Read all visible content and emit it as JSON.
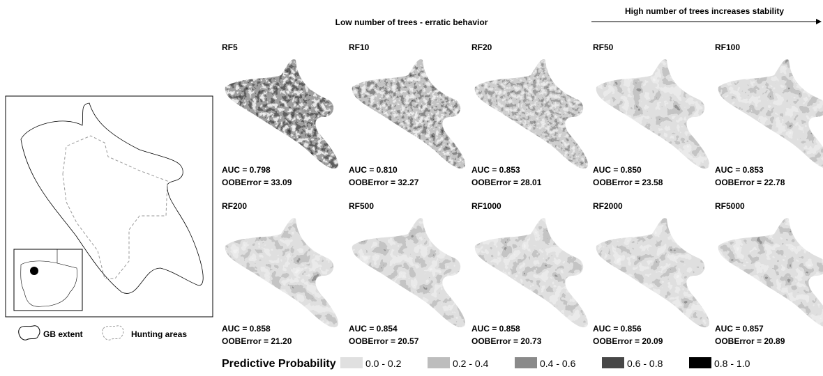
{
  "header": {
    "low_trees": "Low number of trees - erratic behavior",
    "high_trees": "High number of trees increases stability"
  },
  "panels": [
    {
      "label": "RF5",
      "auc": "AUC = 0.798",
      "oob": "OOBError = 33.09"
    },
    {
      "label": "RF10",
      "auc": "AUC = 0.810",
      "oob": "OOBError = 32.27"
    },
    {
      "label": "RF20",
      "auc": "AUC = 0.853",
      "oob": "OOBError = 28.01"
    },
    {
      "label": "RF50",
      "auc": "AUC = 0.850",
      "oob": "OOBError = 23.58"
    },
    {
      "label": "RF100",
      "auc": "AUC = 0.853",
      "oob": "OOBError = 22.78"
    },
    {
      "label": "RF200",
      "auc": "AUC = 0.858",
      "oob": "OOBError = 21.20"
    },
    {
      "label": "RF500",
      "auc": "AUC = 0.854",
      "oob": "OOBError = 20.57"
    },
    {
      "label": "RF1000",
      "auc": "AUC = 0.858",
      "oob": "OOBError = 20.73"
    },
    {
      "label": "RF2000",
      "auc": "AUC = 0.856",
      "oob": "OOBError = 20.09"
    },
    {
      "label": "RF5000",
      "auc": "AUC = 0.857",
      "oob": "OOBError = 20.89"
    }
  ],
  "inset_legend": {
    "extent": "GB extent",
    "hunting": "Hunting areas"
  },
  "legend": {
    "title": "Predictive Probability",
    "classes": [
      {
        "label": "0.0 - 0.2",
        "color": "#e0e0e0"
      },
      {
        "label": "0.2 - 0.4",
        "color": "#bdbdbd"
      },
      {
        "label": "0.4 - 0.6",
        "color": "#8a8a8a"
      },
      {
        "label": "0.6 - 0.8",
        "color": "#474747"
      },
      {
        "label": "0.8 - 1.0",
        "color": "#000000"
      }
    ]
  }
}
